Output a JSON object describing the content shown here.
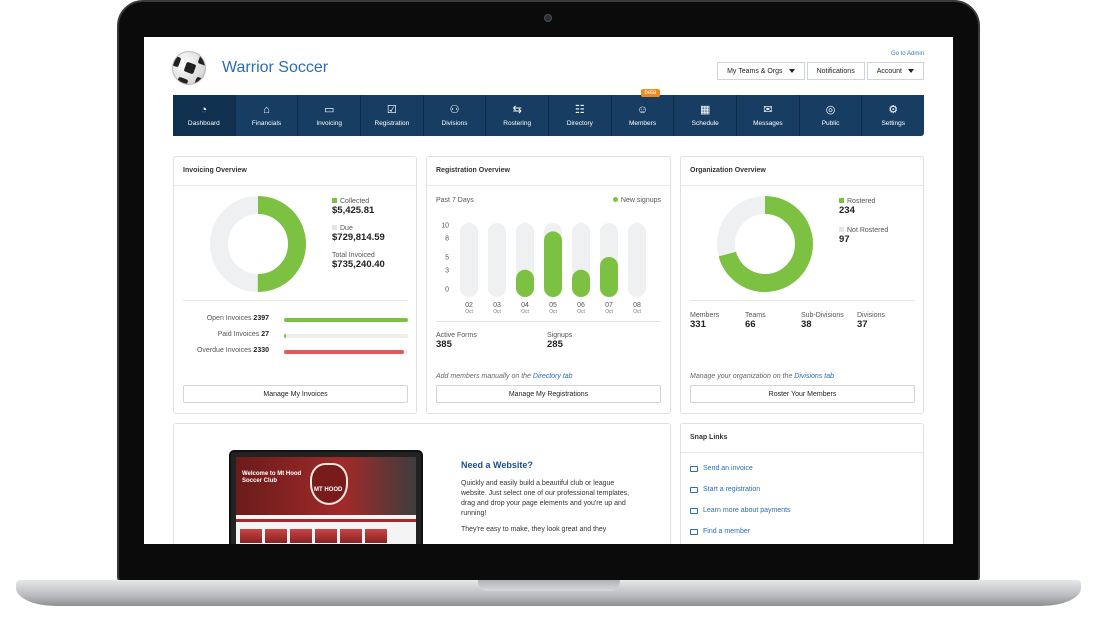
{
  "header": {
    "org_name": "Warrior Soccer",
    "go_to_admin": "Go to Admin",
    "buttons": [
      "My Teams & Orgs",
      "Notifications",
      "Account"
    ]
  },
  "nav": {
    "items": [
      {
        "label": "Dashboard",
        "icon": "dashboard-icon",
        "glyph": "◔"
      },
      {
        "label": "Financials",
        "icon": "bank-icon",
        "glyph": "⌂"
      },
      {
        "label": "Invoicing",
        "icon": "card-icon",
        "glyph": "▭"
      },
      {
        "label": "Registration",
        "icon": "registration-icon",
        "glyph": "☑"
      },
      {
        "label": "Divisions",
        "icon": "people-icon",
        "glyph": "⚇"
      },
      {
        "label": "Rostering",
        "icon": "signpost-icon",
        "glyph": "⇆"
      },
      {
        "label": "Directory",
        "icon": "directory-icon",
        "glyph": "☷"
      },
      {
        "label": "Members",
        "icon": "members-icon",
        "glyph": "☺"
      },
      {
        "label": "Schedule",
        "icon": "calendar-icon",
        "glyph": "▦"
      },
      {
        "label": "Messages",
        "icon": "chat-icon",
        "glyph": "✉"
      },
      {
        "label": "Public",
        "icon": "globe-icon",
        "glyph": "◎"
      },
      {
        "label": "Settings",
        "icon": "gear-icon",
        "glyph": "⚙"
      }
    ],
    "beta_label": "beta"
  },
  "invoicing": {
    "title": "Invoicing Overview",
    "collected_label": "Collected",
    "collected_value": "$5,425.81",
    "due_label": "Due",
    "due_value": "$729,814.59",
    "total_label": "Total Invoiced",
    "total_value": "$735,240.40",
    "rows": [
      {
        "label": "Open Invoices",
        "count": "2397",
        "fraction": 1.0,
        "color": "#7dc142"
      },
      {
        "label": "Paid Invoices",
        "count": "27",
        "fraction": 0.012,
        "color": "#7dc142"
      },
      {
        "label": "Overdue Invoices",
        "count": "2330",
        "fraction": 0.97,
        "color": "#e05a5a"
      }
    ],
    "button": "Manage My Invoices",
    "donut_fraction": 0.5
  },
  "registration": {
    "title": "Registration Overview",
    "period": "Past 7 Days",
    "legend": "New signups",
    "chart_data": {
      "type": "bar",
      "categories": [
        "02 Oct",
        "03 Oct",
        "04 Oct",
        "05 Oct",
        "06 Oct",
        "07 Oct",
        "08 Oct"
      ],
      "day_labels": [
        "02",
        "03",
        "04",
        "05",
        "06",
        "07",
        "08"
      ],
      "month_label": "Oct",
      "values": [
        0,
        0,
        3,
        9,
        3,
        5,
        0
      ],
      "yticks": [
        "10",
        "8",
        "5",
        "3",
        "0"
      ],
      "ylim": [
        0,
        10
      ]
    },
    "active_forms_label": "Active Forms",
    "active_forms_value": "385",
    "signups_label": "Signups",
    "signups_value": "285",
    "note_prefix": "Add members manually on the ",
    "note_link": "Directory tab",
    "button": "Manage My Registrations"
  },
  "organization": {
    "title": "Organization Overview",
    "rostered_label": "Rostered",
    "rostered_value": "234",
    "not_rostered_label": "Not Rostered",
    "not_rostered_value": "97",
    "donut_fraction": 0.707,
    "stats": [
      {
        "label": "Members",
        "value": "331"
      },
      {
        "label": "Teams",
        "value": "66"
      },
      {
        "label": "Sub-Divisions",
        "value": "38"
      },
      {
        "label": "Divisions",
        "value": "37"
      }
    ],
    "note_prefix": "Manage your organization on the ",
    "note_link": "Divisions tab",
    "button": "Roster Your Members"
  },
  "website": {
    "mock_title": "Welcome to Mt Hood Soccer Club",
    "mock_crest": "MT HOOD",
    "heading": "Need a Website?",
    "p1": "Quickly and easily build a beautiful club or league website. Just select one of our professional templates, drag and drop your page elements and you're up and running!",
    "p2": "They're easy to make, they look great and they"
  },
  "snap_links": {
    "title": "Snap Links",
    "items": [
      "Send an invoice",
      "Start a registration",
      "Learn more about payments",
      "Find a member"
    ]
  },
  "colors": {
    "nav": "#173d63",
    "green": "#7dc142",
    "red": "#e05a5a",
    "link": "#2a6db5"
  }
}
